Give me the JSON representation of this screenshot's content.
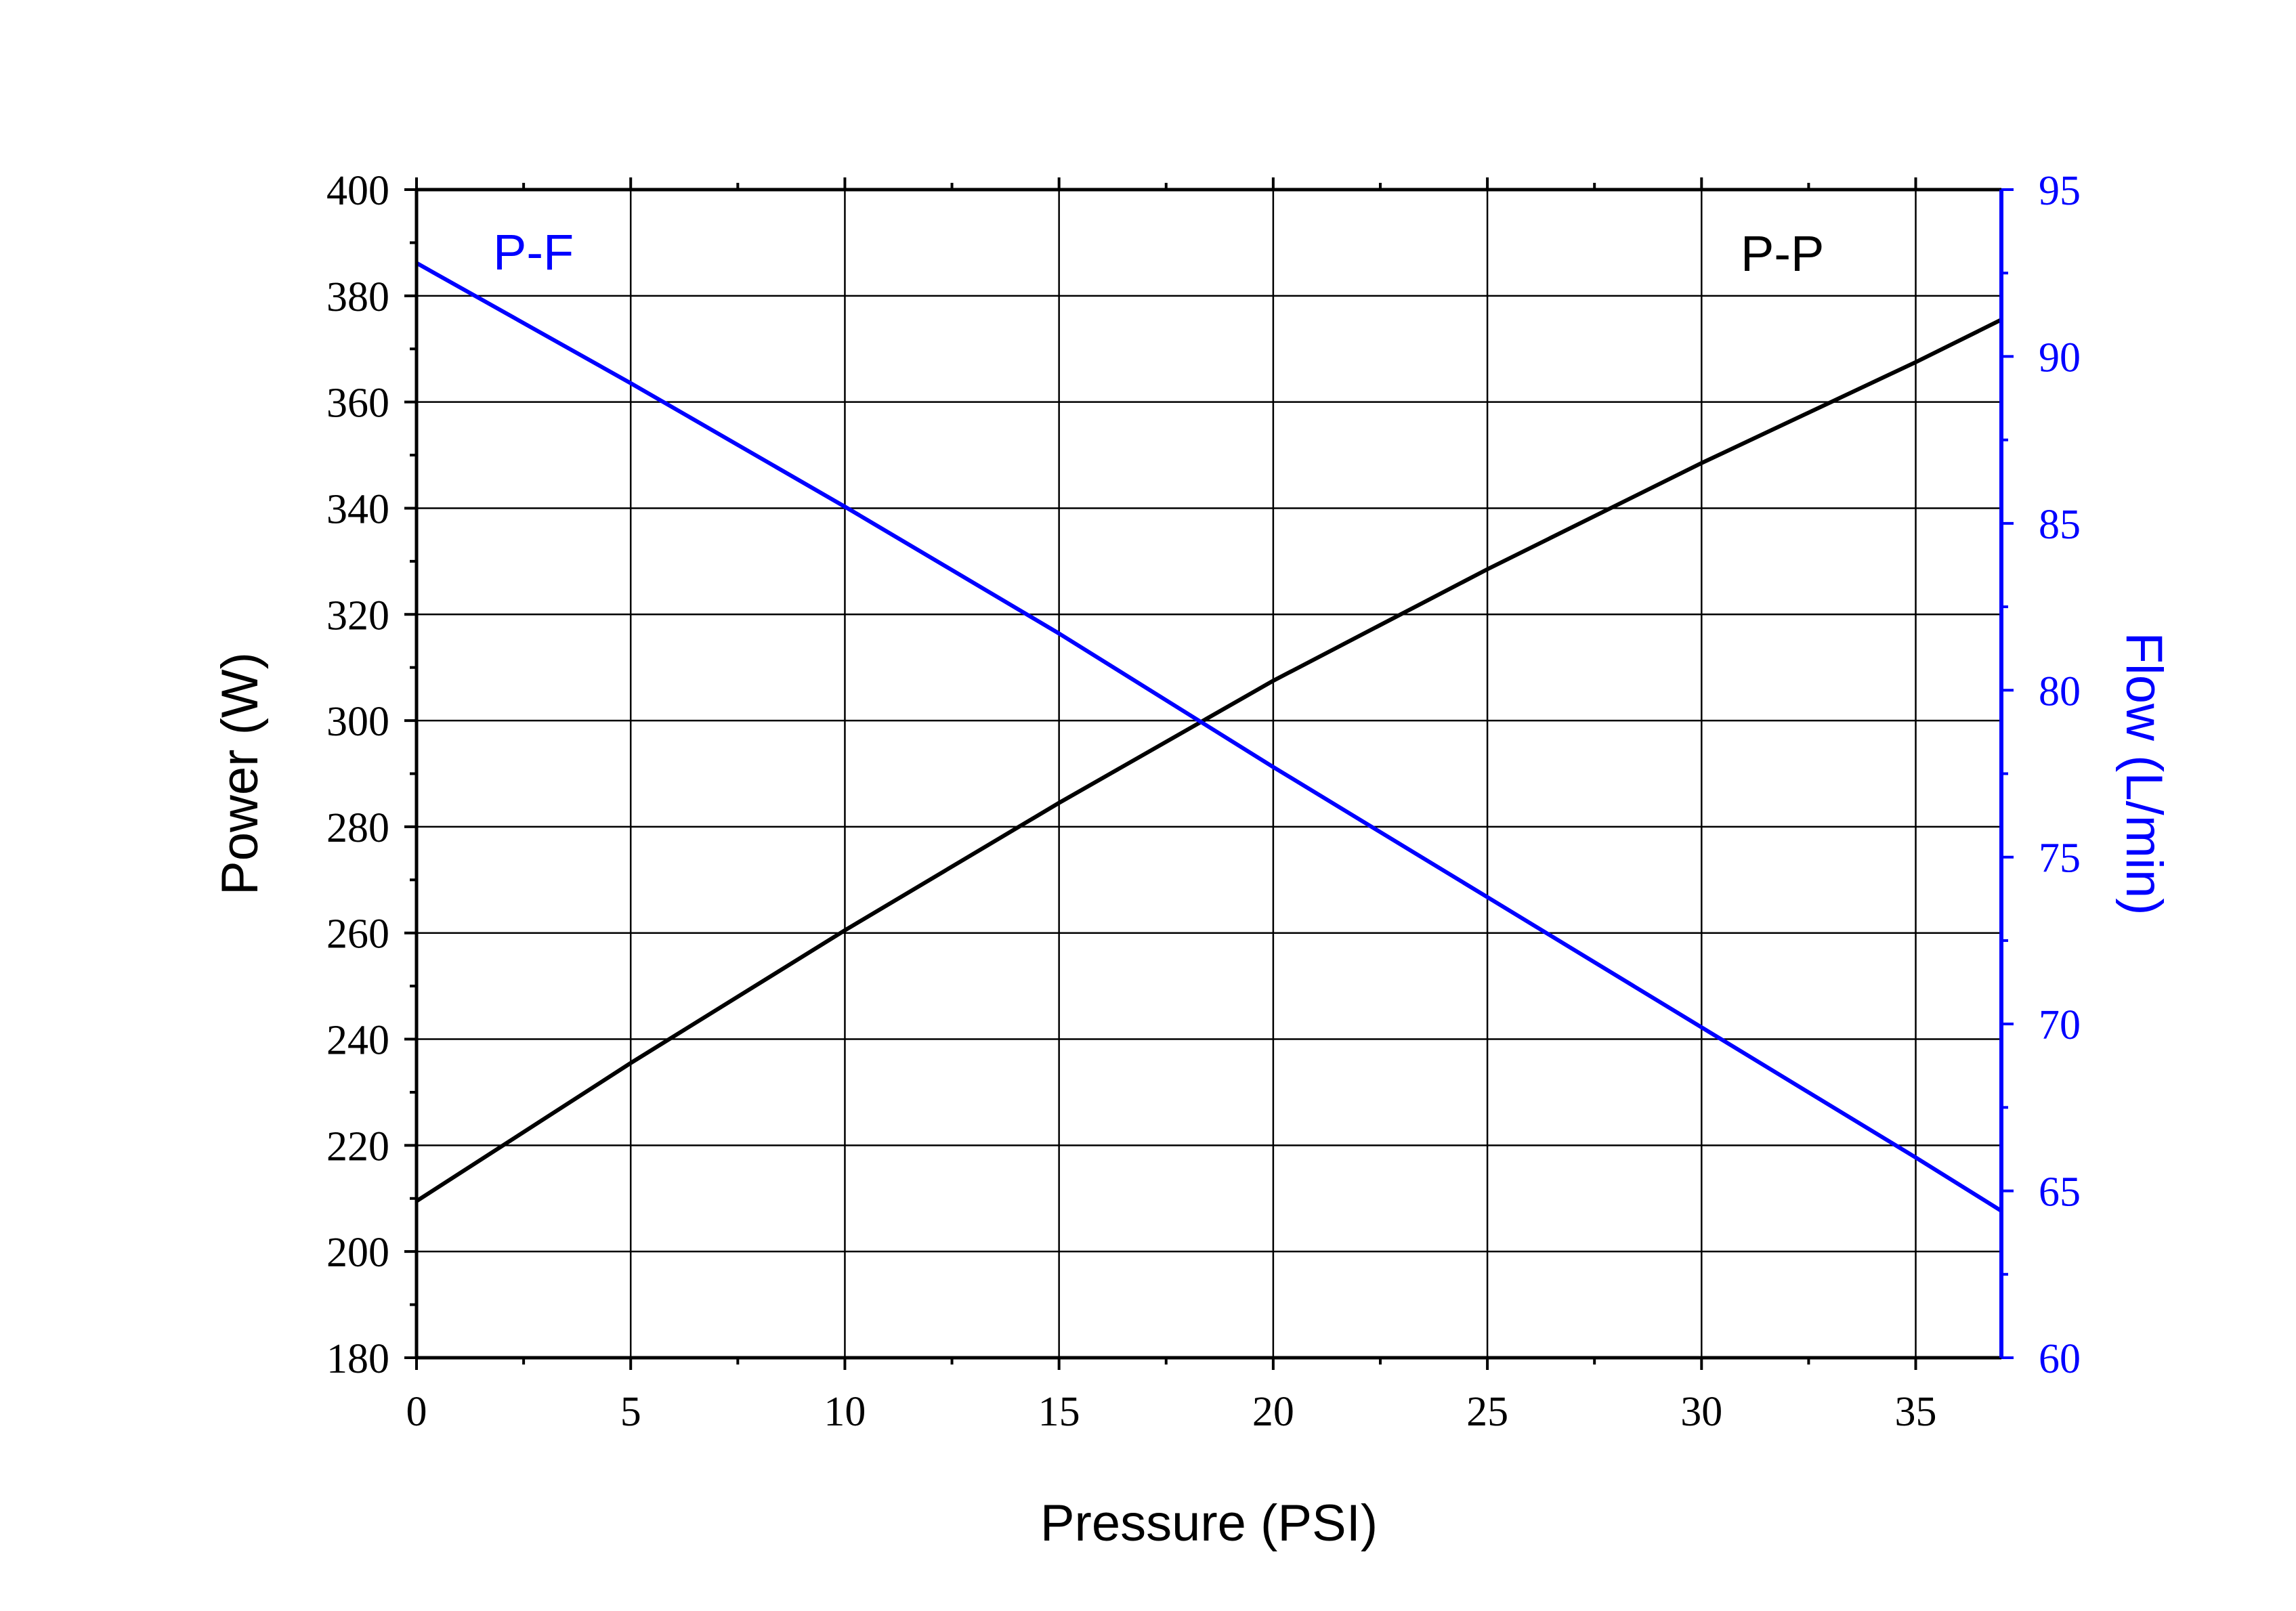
{
  "chart_data": {
    "type": "line",
    "xlabel": "Pressure (PSI)",
    "ylabel": "Power (W)",
    "y2label": "Flow (L/min)",
    "xlim": [
      0,
      37
    ],
    "ylim": [
      180,
      400
    ],
    "y2lim": [
      60,
      95
    ],
    "xticks": [
      0,
      5,
      10,
      15,
      20,
      25,
      30,
      35
    ],
    "yticks": [
      180,
      200,
      220,
      240,
      260,
      280,
      300,
      320,
      340,
      360,
      380,
      400
    ],
    "y2ticks": [
      60,
      65,
      70,
      75,
      80,
      85,
      90,
      95
    ],
    "grid": true,
    "series": [
      {
        "name": "P-P",
        "axis": "left",
        "color": "#000000",
        "x": [
          0,
          5,
          10,
          15,
          20,
          25,
          30,
          35,
          37
        ],
        "y": [
          209.5,
          235.5,
          260.5,
          284.5,
          307.5,
          328.5,
          348.5,
          367.5,
          375.5
        ]
      },
      {
        "name": "P-F",
        "axis": "right",
        "color": "#0000ff",
        "x": [
          0,
          5,
          10,
          15,
          20,
          25,
          30,
          35,
          37
        ],
        "y": [
          92.8,
          89.2,
          85.5,
          81.7,
          77.7,
          73.8,
          69.9,
          66.0,
          64.4
        ]
      }
    ],
    "colors": {
      "left_axis": "#000000",
      "right_axis": "#0000ff",
      "grid": "#000000"
    }
  }
}
